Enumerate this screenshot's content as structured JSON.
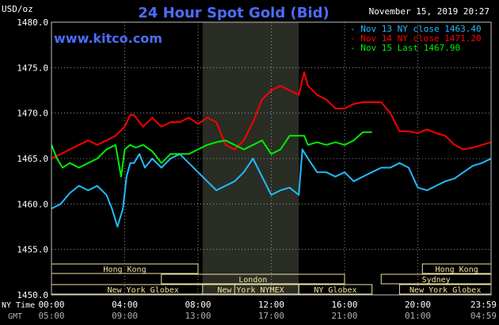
{
  "header": {
    "unit": "USD/oz",
    "title": "24 Hour Spot Gold (Bid)",
    "datetime": "November 15, 2019 20:27",
    "website": "www.kitco.com"
  },
  "colors": {
    "background": "#000000",
    "grid": "#b0b0b0",
    "nov13": "#22bbff",
    "nov14": "#ff0000",
    "nov15": "#00ee00",
    "title": "#4c6cff",
    "session_band": "#f0e3a0",
    "highlight": "#2a2d24"
  },
  "legend": [
    {
      "label": "Nov 13 NY close 1463.40",
      "color": "#22bbff"
    },
    {
      "label": "Nov 14 NY close 1471.20",
      "color": "#ff0000"
    },
    {
      "label": "Nov 15 Last 1467.90",
      "color": "#00ee00"
    }
  ],
  "sessions": [
    {
      "name": "Hong Kong",
      "start": 0,
      "end": 8
    },
    {
      "name": "London",
      "start": 6,
      "end": 16
    },
    {
      "name": "New York Globex",
      "start": 0,
      "end": 10
    },
    {
      "name": "New York NYMEX",
      "start": 8.25,
      "end": 13.5
    },
    {
      "name": "NY Globex",
      "start": 13.5,
      "end": 17.5
    },
    {
      "name": "Hong Kong",
      "start": 20.25,
      "end": 24
    },
    {
      "name": "Sydney",
      "start": 18,
      "end": 24
    },
    {
      "name": "New York Globex",
      "start": 19,
      "end": 24
    }
  ],
  "time_labels": {
    "ny_title": "NY Time",
    "gmt_title": "GMT",
    "ny": [
      "00:00",
      "04:00",
      "08:00",
      "12:00",
      "16:00",
      "20:00",
      "23:59"
    ],
    "gmt": [
      "05:00",
      "09:00",
      "13:00",
      "17:00",
      "21:00",
      "01:00",
      "04:59"
    ]
  },
  "chart_data": {
    "type": "line",
    "title": "24 Hour Spot Gold (Bid)",
    "ylabel": "USD/oz",
    "xlabel": "NY Time",
    "xlim": [
      0,
      24
    ],
    "ylim": [
      1450,
      1480
    ],
    "yticks": [
      "1480.0",
      "1475.0",
      "1470.0",
      "1465.0",
      "1460.0",
      "1455.0",
      "1450.0"
    ],
    "highlight_range": [
      8.25,
      13.5
    ],
    "grid": true,
    "legend_position": "top-right",
    "series": [
      {
        "name": "Nov 13 NY close 1463.40",
        "color": "#22bbff",
        "x": [
          0,
          0.5,
          1,
          1.5,
          2,
          2.5,
          3,
          3.3,
          3.6,
          3.9,
          4.1,
          4.3,
          4.5,
          4.8,
          5.1,
          5.5,
          6,
          6.5,
          7,
          7.5,
          8,
          8.5,
          9,
          9.5,
          10,
          10.5,
          11,
          11.5,
          12,
          12.5,
          13,
          13.5,
          13.7,
          14,
          14.5,
          15,
          15.5,
          16,
          16.5,
          17,
          17.5,
          18,
          18.5,
          19,
          19.5,
          20,
          20.5,
          21,
          21.5,
          22,
          22.5,
          23,
          23.5,
          24
        ],
        "y": [
          1459.5,
          1460,
          1461.2,
          1462,
          1461.5,
          1462,
          1461,
          1459.5,
          1457.5,
          1459.5,
          1463,
          1464.5,
          1464.5,
          1465.5,
          1464,
          1465,
          1464,
          1465,
          1465.5,
          1464.5,
          1463.5,
          1462.5,
          1461.5,
          1462,
          1462.5,
          1463.5,
          1465,
          1463,
          1461,
          1461.5,
          1461.8,
          1461,
          1466,
          1465,
          1463.5,
          1463.5,
          1463,
          1463.5,
          1462.5,
          1463,
          1463.5,
          1464,
          1464,
          1464.5,
          1464,
          1461.8,
          1461.5,
          1462,
          1462.5,
          1462.8,
          1463.5,
          1464.2,
          1464.5,
          1465
        ]
      },
      {
        "name": "Nov 14 NY close 1471.20",
        "color": "#ff0000",
        "x": [
          0,
          0.5,
          1,
          1.5,
          2,
          2.5,
          3,
          3.5,
          4,
          4.3,
          4.5,
          5,
          5.5,
          6,
          6.5,
          7,
          7.5,
          8,
          8.5,
          9,
          9.5,
          10,
          10.5,
          11,
          11.5,
          12,
          12.5,
          13,
          13.5,
          13.8,
          14,
          14.5,
          15,
          15.5,
          16,
          16.5,
          17,
          17.5,
          18,
          18.5,
          19,
          19.5,
          20,
          20.5,
          21,
          21.5,
          22,
          22.5,
          23,
          23.5,
          24
        ],
        "y": [
          1465,
          1465.5,
          1466,
          1466.5,
          1467,
          1466.5,
          1467,
          1467.5,
          1468.5,
          1469.8,
          1469.8,
          1468.5,
          1469.5,
          1468.5,
          1469,
          1469,
          1469.5,
          1468.8,
          1469.5,
          1469,
          1466.5,
          1466,
          1467,
          1469,
          1471.5,
          1472.5,
          1473,
          1472.5,
          1472,
          1474.5,
          1473,
          1472,
          1471.5,
          1470.5,
          1470.5,
          1471,
          1471.2,
          1471.2,
          1471.2,
          1470,
          1468,
          1468,
          1467.8,
          1468.2,
          1467.8,
          1467.5,
          1466.5,
          1466,
          1466.2,
          1466.5,
          1466.8
        ]
      },
      {
        "name": "Nov 15 Last 1467.90",
        "color": "#00ee00",
        "x": [
          0,
          0.3,
          0.6,
          1,
          1.5,
          2,
          2.5,
          3,
          3.5,
          3.8,
          4,
          4.3,
          4.6,
          5,
          5.5,
          6,
          6.5,
          7,
          7.5,
          8,
          8.5,
          9,
          9.5,
          10,
          10.5,
          11,
          11.5,
          12,
          12.5,
          13,
          13.5,
          13.8,
          14,
          14.5,
          15,
          15.5,
          16,
          16.5,
          17,
          17.5
        ],
        "y": [
          1466.5,
          1465,
          1464,
          1464.5,
          1464,
          1464.5,
          1465,
          1466,
          1466.5,
          1463,
          1466,
          1466.5,
          1466.2,
          1466.5,
          1465.8,
          1464.5,
          1465.5,
          1465.5,
          1465.5,
          1466,
          1466.5,
          1466.8,
          1467,
          1466.5,
          1466,
          1466.5,
          1467,
          1465.5,
          1466,
          1467.5,
          1467.5,
          1467.5,
          1466.5,
          1466.8,
          1466.5,
          1466.8,
          1466.5,
          1467,
          1467.9,
          1467.9
        ]
      }
    ]
  }
}
